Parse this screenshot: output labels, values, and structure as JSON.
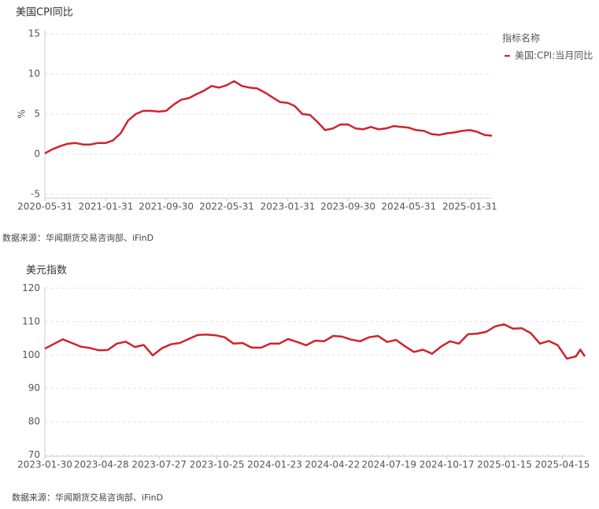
{
  "chart_data": [
    {
      "type": "line",
      "title": "美国CPI同比",
      "ylabel": "%",
      "note": "数据来源：华闻期货交易咨询部、iFinD",
      "legend_title": "指标名称",
      "legend": "right",
      "grid": true,
      "x": [
        "2020-05-31",
        "2020-06-30",
        "2020-07-31",
        "2020-08-31",
        "2020-09-30",
        "2020-10-31",
        "2020-11-30",
        "2020-12-31",
        "2021-01-31",
        "2021-02-28",
        "2021-03-31",
        "2021-04-30",
        "2021-05-31",
        "2021-06-30",
        "2021-07-31",
        "2021-08-31",
        "2021-09-30",
        "2021-10-31",
        "2021-11-30",
        "2021-12-31",
        "2022-01-31",
        "2022-02-28",
        "2022-03-31",
        "2022-04-30",
        "2022-05-31",
        "2022-06-30",
        "2022-07-31",
        "2022-08-31",
        "2022-09-30",
        "2022-10-31",
        "2022-11-30",
        "2022-12-31",
        "2023-01-31",
        "2023-02-28",
        "2023-03-31",
        "2023-04-30",
        "2023-05-31",
        "2023-06-30",
        "2023-07-31",
        "2023-08-31",
        "2023-09-30",
        "2023-10-31",
        "2023-11-30",
        "2023-12-31",
        "2024-01-31",
        "2024-02-29",
        "2024-03-31",
        "2024-04-30",
        "2024-05-31",
        "2024-06-30",
        "2024-07-31",
        "2024-08-31",
        "2024-09-30",
        "2024-10-31",
        "2024-11-30",
        "2024-12-31",
        "2025-01-31",
        "2025-02-28",
        "2025-03-31",
        "2025-04-30"
      ],
      "series": [
        {
          "name": "美国:CPI:当月同比",
          "color": "#d0232b",
          "values": [
            0.1,
            0.6,
            1.0,
            1.3,
            1.4,
            1.2,
            1.2,
            1.4,
            1.4,
            1.7,
            2.6,
            4.2,
            5.0,
            5.4,
            5.4,
            5.3,
            5.4,
            6.2,
            6.8,
            7.0,
            7.5,
            7.9,
            8.5,
            8.3,
            8.6,
            9.1,
            8.5,
            8.3,
            8.2,
            7.7,
            7.1,
            6.5,
            6.4,
            6.0,
            5.0,
            4.9,
            4.0,
            3.0,
            3.2,
            3.7,
            3.7,
            3.2,
            3.1,
            3.4,
            3.1,
            3.2,
            3.5,
            3.4,
            3.3,
            3.0,
            2.9,
            2.5,
            2.4,
            2.6,
            2.7,
            2.9,
            3.0,
            2.8,
            2.4,
            2.3
          ]
        }
      ],
      "xlim": [
        "2020-05-31",
        "2025-04-30"
      ],
      "xticks": [
        "2020-05-31",
        "2021-01-31",
        "2021-09-30",
        "2022-05-31",
        "2023-01-31",
        "2023-09-30",
        "2024-05-31",
        "2025-01-31"
      ],
      "ylim": [
        -5.5,
        15.5
      ],
      "yticks": [
        -5,
        0,
        5,
        10,
        15
      ]
    },
    {
      "type": "line",
      "title": "美元指数",
      "note": "数据来源：华闻期货交易咨询部、iFinD",
      "grid": true,
      "x": [
        "2023-01-30",
        "2023-02-13",
        "2023-02-27",
        "2023-03-13",
        "2023-03-27",
        "2023-04-10",
        "2023-04-24",
        "2023-05-08",
        "2023-05-22",
        "2023-06-05",
        "2023-06-19",
        "2023-07-03",
        "2023-07-17",
        "2023-07-31",
        "2023-08-14",
        "2023-08-28",
        "2023-09-11",
        "2023-09-25",
        "2023-10-09",
        "2023-10-23",
        "2023-11-06",
        "2023-11-20",
        "2023-12-04",
        "2023-12-18",
        "2024-01-02",
        "2024-01-16",
        "2024-01-30",
        "2024-02-13",
        "2024-02-27",
        "2024-03-12",
        "2024-03-26",
        "2024-04-09",
        "2024-04-23",
        "2024-05-07",
        "2024-05-21",
        "2024-06-04",
        "2024-06-18",
        "2024-07-02",
        "2024-07-16",
        "2024-07-30",
        "2024-08-13",
        "2024-08-27",
        "2024-09-10",
        "2024-09-24",
        "2024-10-08",
        "2024-10-22",
        "2024-11-05",
        "2024-11-19",
        "2024-12-03",
        "2024-12-17",
        "2024-12-31",
        "2025-01-14",
        "2025-01-28",
        "2025-02-11",
        "2025-02-25",
        "2025-03-11",
        "2025-03-25",
        "2025-04-08",
        "2025-04-22",
        "2025-05-06",
        "2025-05-13",
        "2025-05-20"
      ],
      "series": [
        {
          "color": "#d0232b",
          "values": [
            101.9,
            103.3,
            104.7,
            103.6,
            102.5,
            102.1,
            101.4,
            101.5,
            103.4,
            104.0,
            102.4,
            103.0,
            99.9,
            102.0,
            103.2,
            103.6,
            104.8,
            106.0,
            106.1,
            105.9,
            105.3,
            103.4,
            103.6,
            102.2,
            102.2,
            103.4,
            103.4,
            104.8,
            103.9,
            102.9,
            104.3,
            104.1,
            105.7,
            105.5,
            104.6,
            104.1,
            105.3,
            105.7,
            103.9,
            104.5,
            102.6,
            100.9,
            101.6,
            100.4,
            102.5,
            104.1,
            103.4,
            106.2,
            106.4,
            106.9,
            108.5,
            109.2,
            107.9,
            108.0,
            106.5,
            103.4,
            104.2,
            102.9,
            98.9,
            99.6,
            101.6,
            99.6
          ]
        }
      ],
      "xlim": [
        "2023-01-30",
        "2025-05-20"
      ],
      "xticks": [
        "2023-01-30",
        "2023-04-28",
        "2023-07-27",
        "2023-10-25",
        "2024-01-23",
        "2024-04-22",
        "2024-07-19",
        "2024-10-17",
        "2025-01-15",
        "2025-04-15"
      ],
      "ylim": [
        69.7,
        120.3
      ],
      "yticks": [
        70,
        80,
        90,
        100,
        110,
        120
      ]
    }
  ]
}
